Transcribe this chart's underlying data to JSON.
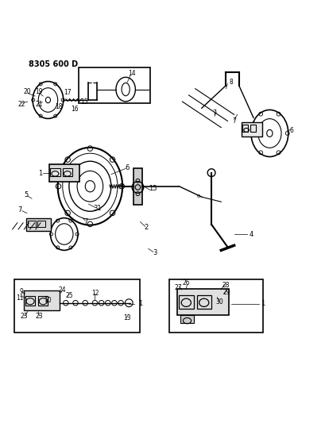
{
  "title": "8305 600 D",
  "bg_color": "#ffffff",
  "line_color": "#000000",
  "fig_width": 4.1,
  "fig_height": 5.33,
  "dpi": 100
}
